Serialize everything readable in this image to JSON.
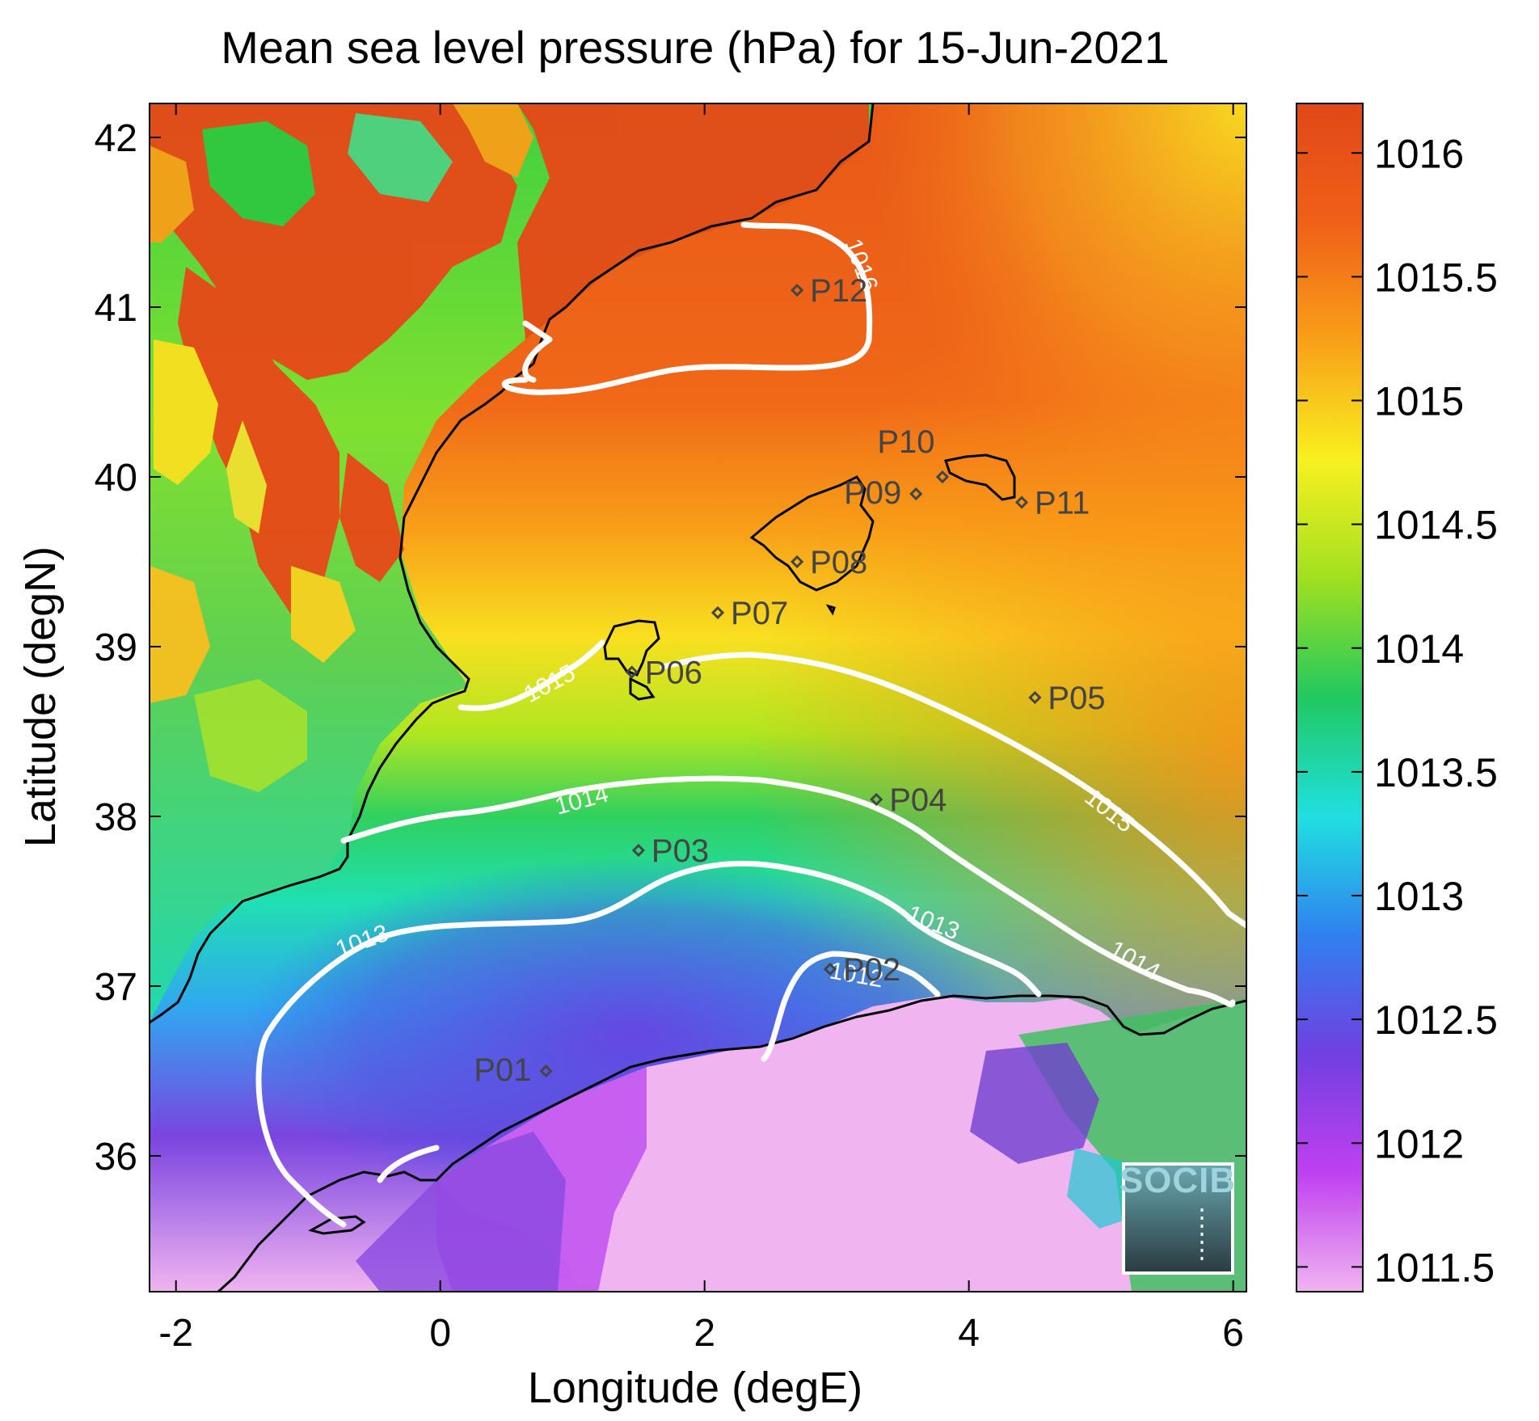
{
  "title": "Mean sea level pressure (hPa) for 15-Jun-2021",
  "map": {
    "xlabel": "Longitude (degE)",
    "ylabel": "Latitude (degN)",
    "xlim": [
      -2.2,
      6.1
    ],
    "ylim": [
      35.2,
      42.2
    ],
    "xticks": [
      "-2",
      "0",
      "2",
      "4",
      "6"
    ],
    "yticks": [
      "36",
      "37",
      "38",
      "39",
      "40",
      "41",
      "42"
    ]
  },
  "colorbar": {
    "ticks": [
      "1016",
      "1015.5",
      "1015",
      "1014.5",
      "1014",
      "1013.5",
      "1013",
      "1012.5",
      "1012",
      "1011.5"
    ],
    "range": [
      1011.4,
      1016.2
    ],
    "colors": [
      "#f0b4f0",
      "#c040f0",
      "#7040e0",
      "#3080f0",
      "#20e0e0",
      "#20c860",
      "#a0e020",
      "#f8f020",
      "#f8a018",
      "#f06018",
      "#e04818"
    ]
  },
  "stations": [
    {
      "name": "P01",
      "lon": 0.8,
      "lat": 36.5
    },
    {
      "name": "P02",
      "lon": 2.95,
      "lat": 37.1
    },
    {
      "name": "P03",
      "lon": 1.5,
      "lat": 37.8
    },
    {
      "name": "P04",
      "lon": 3.3,
      "lat": 38.1
    },
    {
      "name": "P05",
      "lon": 4.5,
      "lat": 38.7
    },
    {
      "name": "P06",
      "lon": 1.45,
      "lat": 38.85
    },
    {
      "name": "P07",
      "lon": 2.1,
      "lat": 39.2
    },
    {
      "name": "P08",
      "lon": 2.7,
      "lat": 39.5
    },
    {
      "name": "P09",
      "lon": 3.6,
      "lat": 39.9
    },
    {
      "name": "P10",
      "lon": 3.8,
      "lat": 40.0
    },
    {
      "name": "P11",
      "lon": 4.4,
      "lat": 39.85
    },
    {
      "name": "P12",
      "lon": 2.7,
      "lat": 41.1
    }
  ],
  "contour_labels": [
    "1016",
    "1015",
    "1015",
    "1014",
    "1014",
    "1013",
    "1013",
    "1012"
  ],
  "logo": "SOCIB"
}
